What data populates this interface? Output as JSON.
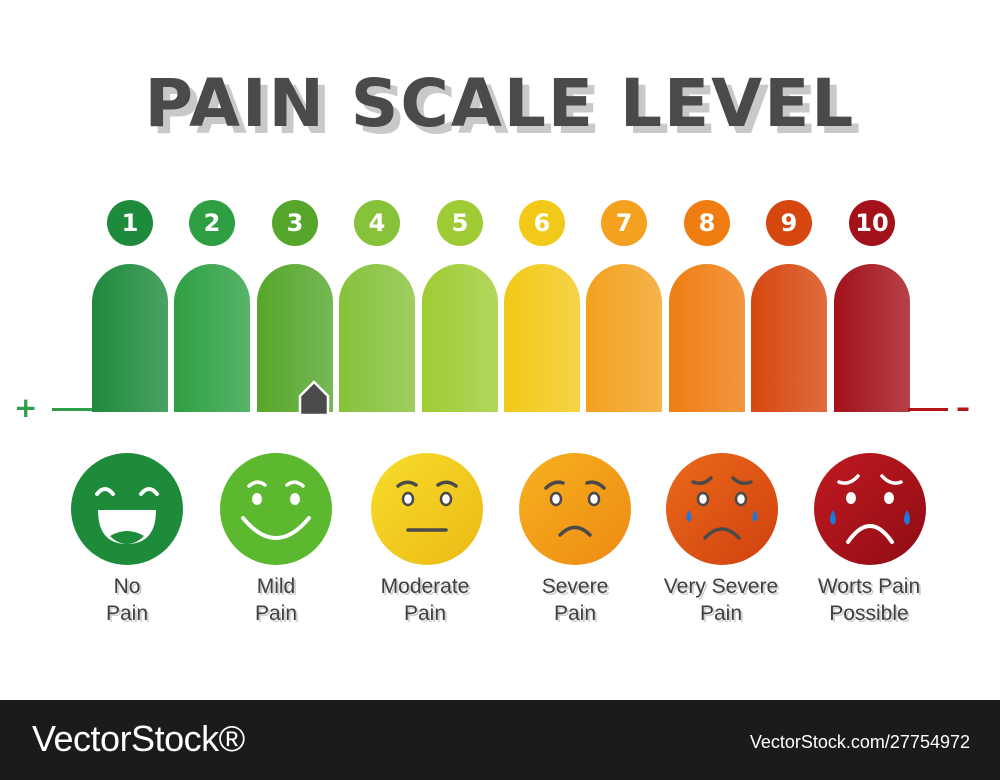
{
  "title": "PAIN SCALE LEVEL",
  "scale": {
    "levels": [
      {
        "number": "1",
        "color": "#1e8a3c"
      },
      {
        "number": "2",
        "color": "#2ea043"
      },
      {
        "number": "3",
        "color": "#55a62a"
      },
      {
        "number": "4",
        "color": "#86c23a"
      },
      {
        "number": "5",
        "color": "#9fcc34"
      },
      {
        "number": "6",
        "color": "#f2c919"
      },
      {
        "number": "7",
        "color": "#f3a11f"
      },
      {
        "number": "8",
        "color": "#ef7d12"
      },
      {
        "number": "9",
        "color": "#d6470f"
      },
      {
        "number": "10",
        "color": "#a3111a"
      }
    ],
    "plus_sign": "+",
    "minus_sign": "–",
    "pointer_level": 3
  },
  "faces": [
    {
      "line1": "No",
      "line2": "Pain",
      "color": "#1d8b3a",
      "icon": "laughing-face-icon"
    },
    {
      "line1": "Mild",
      "line2": "Pain",
      "color": "#5cb82e",
      "icon": "smiling-face-icon"
    },
    {
      "line1": "Moderate",
      "line2": "Pain",
      "color": "#f0d21a",
      "icon": "neutral-face-icon"
    },
    {
      "line1": "Severe",
      "line2": "Pain",
      "color": "#f39a1a",
      "icon": "sad-face-icon"
    },
    {
      "line1": "Very Severe",
      "line2": "Pain",
      "color": "#e0561a",
      "icon": "tearful-face-icon"
    },
    {
      "line1": "Worts Pain",
      "line2": "Possible",
      "color": "#b3121b",
      "icon": "crying-face-icon"
    }
  ],
  "footer": {
    "brand": "VectorStock®",
    "credit": "VectorStock.com/27754972"
  }
}
